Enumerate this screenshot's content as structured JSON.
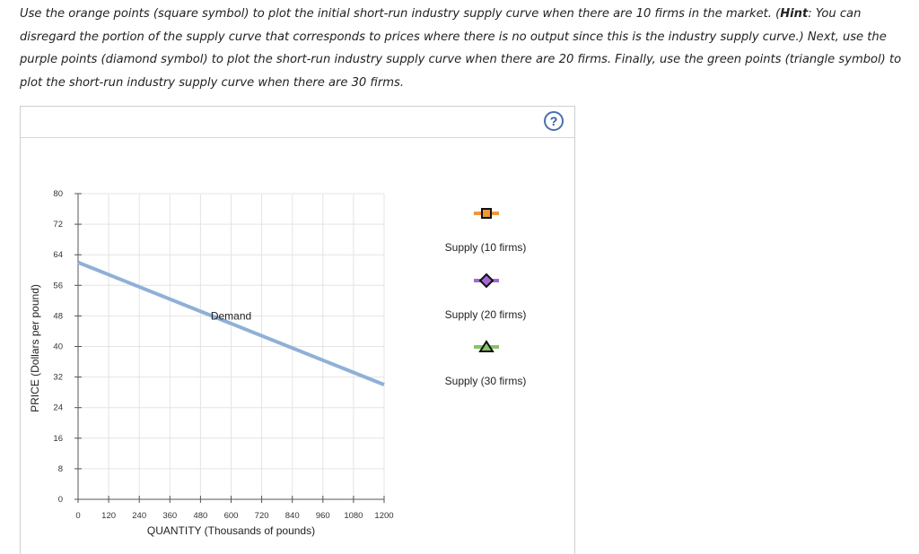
{
  "instructions": {
    "part1": "Use the orange points (square symbol) to plot the initial short-run industry supply curve when there are 10 firms in the market. (",
    "hint_label": "Hint",
    "part2": ": You can disregard the portion of the supply curve that corresponds to prices where there is no output since this is the industry supply curve.) Next, use the purple points (diamond symbol) to plot the short-run industry supply curve when there are 20 firms. Finally, use the green points (triangle symbol) to plot the short-run industry supply curve when there are 30 firms."
  },
  "help": {
    "label": "?"
  },
  "chart_data": {
    "type": "line",
    "xlabel": "QUANTITY (Thousands of pounds)",
    "ylabel": "PRICE (Dollars per pound)",
    "xlim": [
      0,
      1200
    ],
    "ylim": [
      0,
      80
    ],
    "xticks": [
      0,
      120,
      240,
      360,
      480,
      600,
      720,
      840,
      960,
      1080,
      1200
    ],
    "yticks": [
      0,
      8,
      16,
      24,
      32,
      40,
      48,
      56,
      64,
      72,
      80
    ],
    "grid": true,
    "series": [
      {
        "name": "Demand",
        "label": "Demand",
        "color": "#8fb0d8",
        "x": [
          0,
          1200
        ],
        "y": [
          62,
          30
        ],
        "label_at": [
          600,
          48
        ]
      }
    ],
    "palette": [
      {
        "name": "Supply (10 firms)",
        "color": "#f0973a",
        "symbol": "square"
      },
      {
        "name": "Supply (20 firms)",
        "color": "#a269d0",
        "symbol": "diamond"
      },
      {
        "name": "Supply (30 firms)",
        "color": "#86c46a",
        "symbol": "triangle"
      }
    ]
  }
}
